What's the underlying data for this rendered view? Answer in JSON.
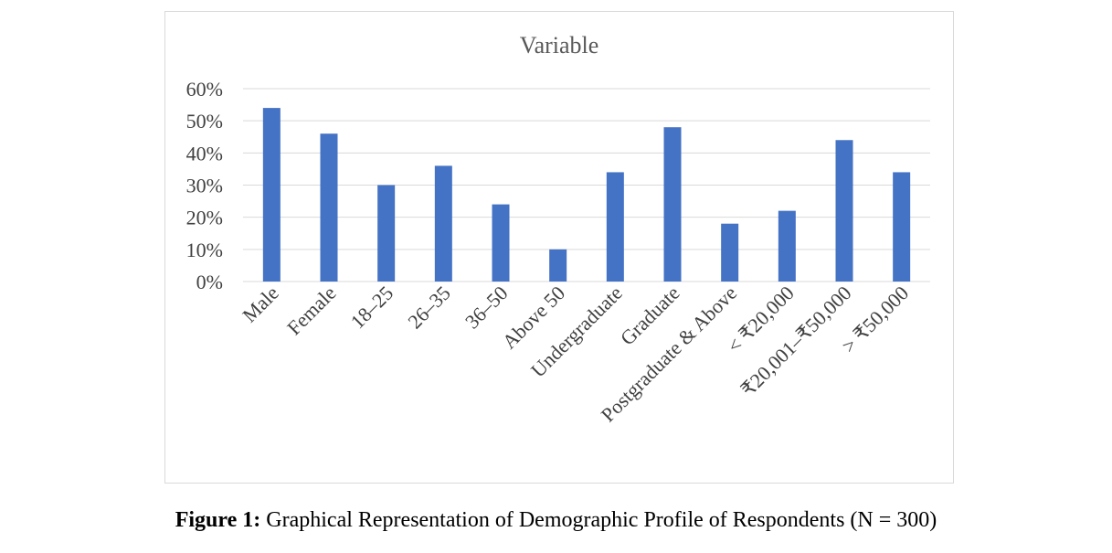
{
  "chart_data": {
    "type": "bar",
    "title": "Variable",
    "categories": [
      "Male",
      "Female",
      "18–25",
      "26–35",
      "36–50",
      "Above 50",
      "Undergraduate",
      "Graduate",
      "Postgraduate & Above",
      "< ₹20,000",
      "₹20,001–₹50,000",
      "> ₹50,000"
    ],
    "values": [
      54,
      46,
      30,
      36,
      24,
      10,
      34,
      48,
      18,
      22,
      44,
      34
    ],
    "ylim": [
      0,
      60
    ],
    "yticks": [
      "0%",
      "10%",
      "20%",
      "30%",
      "40%",
      "50%",
      "60%"
    ],
    "grid": true,
    "bar_color": "#4472c4"
  },
  "caption": {
    "label": "Figure 1:",
    "text": " Graphical Representation of Demographic Profile of Respondents (N = 300)"
  }
}
